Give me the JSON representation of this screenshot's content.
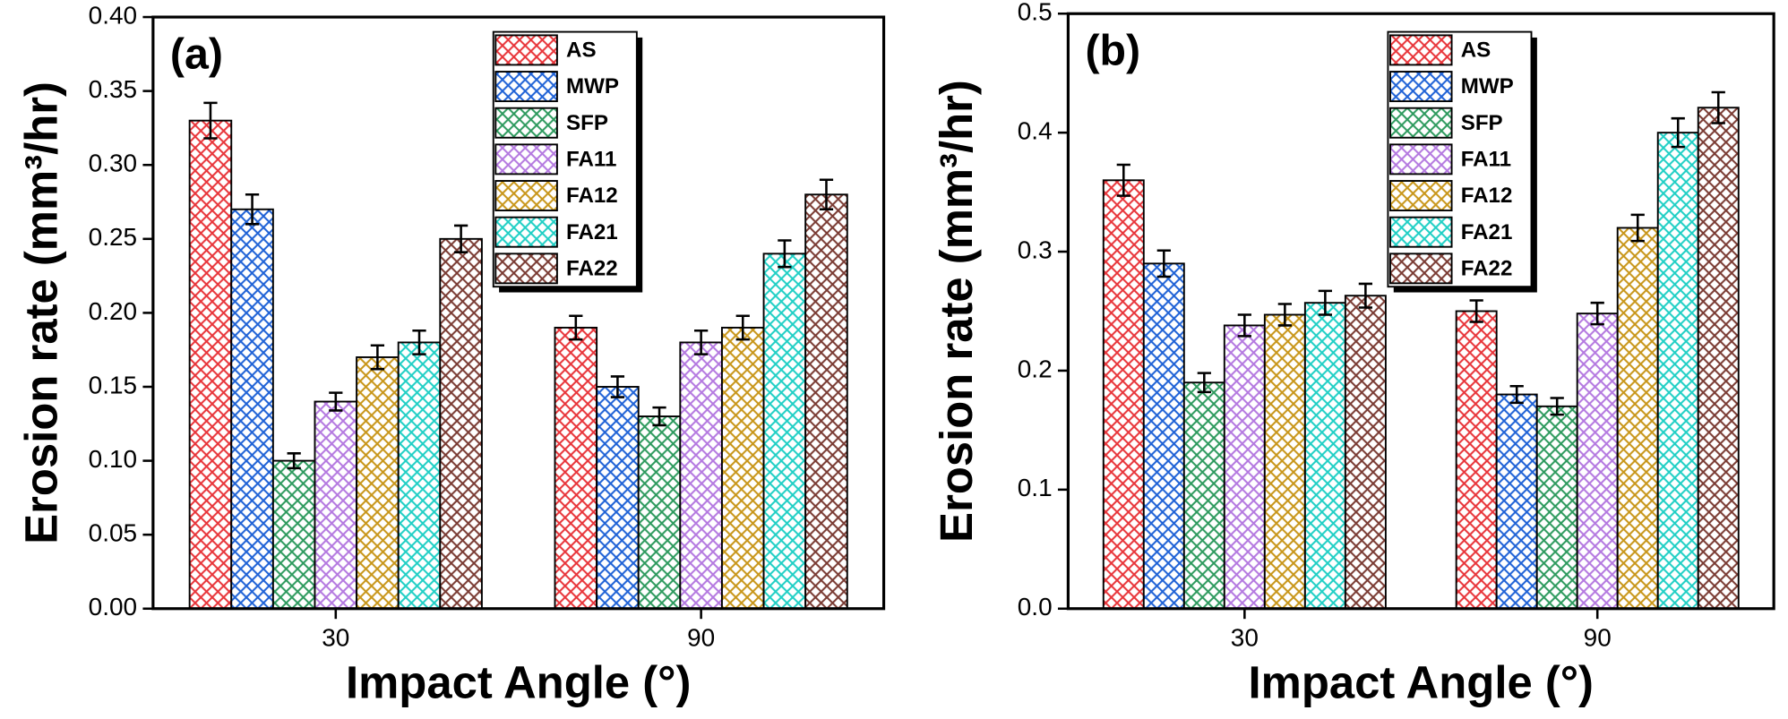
{
  "chart_data": [
    {
      "type": "bar",
      "panel_label": "(a)",
      "y_label": "Erosion rate (mm³/hr)",
      "x_label": "Impact Angle (°)",
      "categories": [
        "30",
        "90"
      ],
      "ylim": [
        0,
        0.4
      ],
      "yticks": [
        {
          "value": 0,
          "label": "0.00"
        },
        {
          "value": 0.05,
          "label": "0.05"
        },
        {
          "value": 0.1,
          "label": "0.10"
        },
        {
          "value": 0.15,
          "label": "0.15"
        },
        {
          "value": 0.2,
          "label": "0.20"
        },
        {
          "value": 0.25,
          "label": "0.25"
        },
        {
          "value": 0.3,
          "label": "0.30"
        },
        {
          "value": 0.35,
          "label": "0.35"
        },
        {
          "value": 0.4,
          "label": "0.40"
        }
      ],
      "pattern": "crosshatch",
      "series": [
        {
          "name": "AS",
          "color": "#e8353a",
          "values": [
            0.33,
            0.19
          ],
          "errors": [
            0.012,
            0.008
          ]
        },
        {
          "name": "MWP",
          "color": "#1f62d6",
          "values": [
            0.27,
            0.15
          ],
          "errors": [
            0.01,
            0.007
          ]
        },
        {
          "name": "SFP",
          "color": "#2e9a5e",
          "values": [
            0.1,
            0.13
          ],
          "errors": [
            0.005,
            0.006
          ]
        },
        {
          "name": "FA11",
          "color": "#b479e0",
          "values": [
            0.14,
            0.18
          ],
          "errors": [
            0.006,
            0.008
          ]
        },
        {
          "name": "FA12",
          "color": "#c8961a",
          "values": [
            0.17,
            0.19
          ],
          "errors": [
            0.008,
            0.008
          ]
        },
        {
          "name": "FA21",
          "color": "#20cfc5",
          "values": [
            0.18,
            0.24
          ],
          "errors": [
            0.008,
            0.009
          ]
        },
        {
          "name": "FA22",
          "color": "#7a3b33",
          "values": [
            0.25,
            0.28
          ],
          "errors": [
            0.009,
            0.01
          ]
        }
      ]
    },
    {
      "type": "bar",
      "panel_label": "(b)",
      "y_label": "Erosion rate (mm³/hr)",
      "x_label": "Impact Angle (°)",
      "categories": [
        "30",
        "90"
      ],
      "ylim": [
        0,
        0.5
      ],
      "yticks": [
        {
          "value": 0,
          "label": "0.0"
        },
        0.1,
        0.2,
        0.3,
        0.4,
        0.5
      ],
      "pattern": "crosshatch",
      "series": [
        {
          "name": "AS",
          "color": "#e8353a",
          "values": [
            0.36,
            0.25
          ],
          "errors": [
            0.013,
            0.009
          ]
        },
        {
          "name": "MWP",
          "color": "#1f62d6",
          "values": [
            0.29,
            0.18
          ],
          "errors": [
            0.011,
            0.007
          ]
        },
        {
          "name": "SFP",
          "color": "#2e9a5e",
          "values": [
            0.19,
            0.17
          ],
          "errors": [
            0.008,
            0.007
          ]
        },
        {
          "name": "FA11",
          "color": "#b479e0",
          "values": [
            0.238,
            0.248
          ],
          "errors": [
            0.009,
            0.009
          ]
        },
        {
          "name": "FA12",
          "color": "#c8961a",
          "values": [
            0.247,
            0.32
          ],
          "errors": [
            0.009,
            0.011
          ]
        },
        {
          "name": "FA21",
          "color": "#20cfc5",
          "values": [
            0.257,
            0.4
          ],
          "errors": [
            0.01,
            0.012
          ]
        },
        {
          "name": "FA22",
          "color": "#7a3b33",
          "values": [
            0.263,
            0.421
          ],
          "errors": [
            0.01,
            0.013
          ]
        }
      ]
    }
  ]
}
